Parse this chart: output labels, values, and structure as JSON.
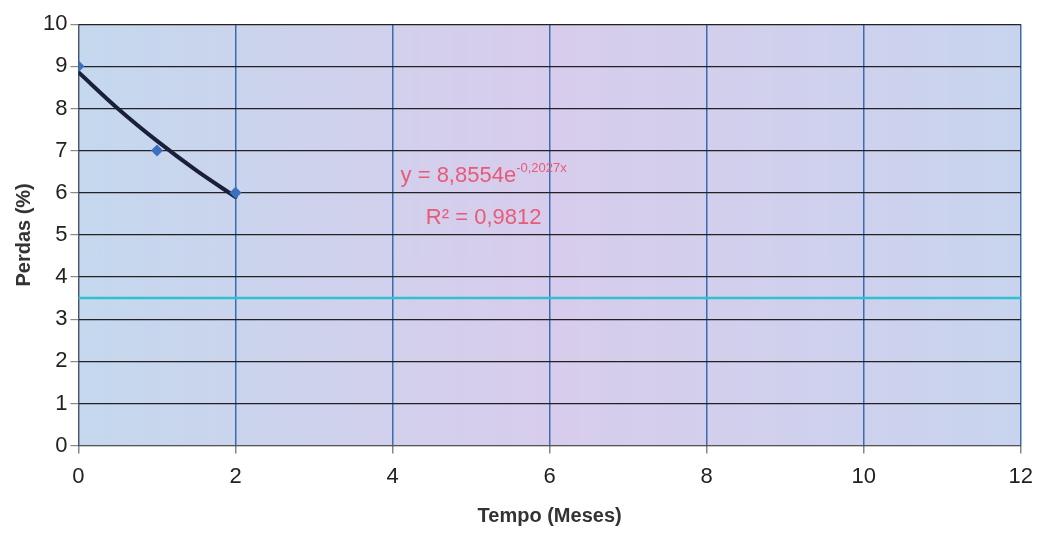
{
  "chart_data": {
    "type": "scatter",
    "xlabel": "Tempo (Meses)",
    "ylabel": "Perdas (%)",
    "xlim": [
      0,
      12
    ],
    "xticks": [
      0,
      2,
      4,
      6,
      8,
      10,
      12
    ],
    "ylim": [
      0,
      10
    ],
    "yticks": [
      0,
      1,
      2,
      3,
      4,
      5,
      6,
      7,
      8,
      9,
      10
    ],
    "grid": true,
    "legend": false,
    "series": [
      {
        "type": "scatter",
        "color": "#3a70c0",
        "marker": "diamond",
        "x": [
          0,
          1,
          2
        ],
        "values": [
          9,
          7,
          6
        ]
      },
      {
        "type": "line",
        "color": "#1a1f3a",
        "marker": "none",
        "x": [
          0,
          0.5,
          1,
          1.5,
          2
        ],
        "values": [
          8.86,
          8.0,
          7.23,
          6.53,
          5.9
        ]
      }
    ],
    "ref_lines": [
      {
        "axis": "y",
        "value": 3.5,
        "color": "#30c0d0"
      }
    ],
    "annotations": [
      "y = 8,8554e$^{-0,2027x}$",
      "R² = 0,9812"
    ]
  }
}
